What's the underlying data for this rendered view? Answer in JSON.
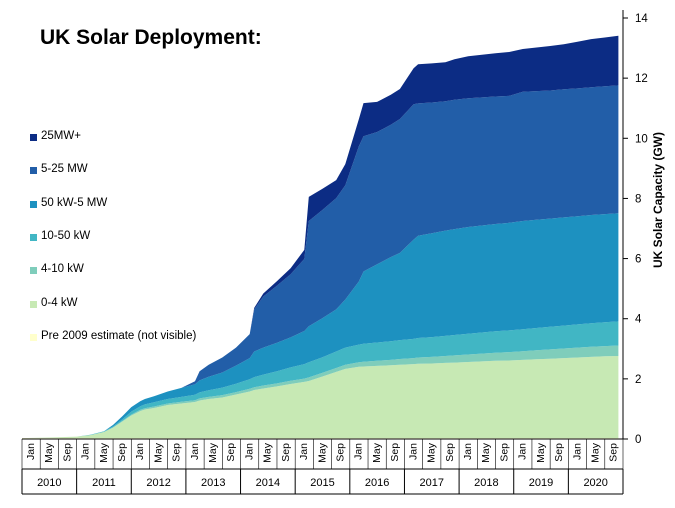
{
  "chart_data": {
    "type": "area",
    "stacked": true,
    "title": "UK Solar Deployment:",
    "ylabel": "UK Solar Capacity (GW)",
    "xlabel": "",
    "ylim": [
      0,
      14
    ],
    "y_ticks": [
      "0",
      "2",
      "4",
      "6",
      "8",
      "10",
      "12",
      "14"
    ],
    "x_month_labels": [
      "Jan",
      "May",
      "Sep"
    ],
    "x_years": [
      "2010",
      "2011",
      "2012",
      "2013",
      "2014",
      "2015",
      "2016",
      "2017",
      "2018",
      "2019",
      "2020"
    ],
    "x_start": "2010-01",
    "x_end": "2020-12",
    "y_axis_position": "right",
    "legend_position": "left",
    "grid": false,
    "dates": [
      "2010-01",
      "2010-07",
      "2011-01",
      "2011-04",
      "2011-07",
      "2011-09",
      "2011-11",
      "2012-01",
      "2012-03",
      "2012-04",
      "2012-06",
      "2012-09",
      "2012-12",
      "2013-03",
      "2013-04",
      "2013-06",
      "2013-09",
      "2013-12",
      "2014-03",
      "2014-04",
      "2014-06",
      "2014-09",
      "2014-12",
      "2015-03",
      "2015-04",
      "2015-07",
      "2015-10",
      "2015-12",
      "2016-03",
      "2016-04",
      "2016-07",
      "2016-10",
      "2016-12",
      "2017-03",
      "2017-04",
      "2017-07",
      "2017-10",
      "2017-12",
      "2018-03",
      "2018-06",
      "2018-09",
      "2018-12",
      "2019-03",
      "2019-06",
      "2019-09",
      "2019-12",
      "2020-03",
      "2020-06",
      "2020-09",
      "2020-12"
    ],
    "series": [
      {
        "name": "Pre 2009 estimate (not visible)",
        "color": "#ffffcc",
        "values": [
          0.03,
          0.03,
          0.03,
          0.03,
          0.03,
          0.03,
          0.03,
          0.03,
          0.03,
          0.03,
          0.03,
          0.03,
          0.03,
          0.03,
          0.03,
          0.03,
          0.03,
          0.03,
          0.03,
          0.03,
          0.03,
          0.03,
          0.03,
          0.03,
          0.03,
          0.03,
          0.03,
          0.03,
          0.03,
          0.03,
          0.03,
          0.03,
          0.03,
          0.03,
          0.03,
          0.03,
          0.03,
          0.03,
          0.03,
          0.03,
          0.03,
          0.03,
          0.03,
          0.03,
          0.03,
          0.03,
          0.03,
          0.03,
          0.03,
          0.03
        ]
      },
      {
        "name": "0-4 kW",
        "color": "#c7e9b4",
        "values": [
          0.0,
          0.02,
          0.05,
          0.1,
          0.2,
          0.35,
          0.55,
          0.75,
          0.9,
          0.95,
          1.0,
          1.1,
          1.15,
          1.2,
          1.25,
          1.3,
          1.35,
          1.45,
          1.55,
          1.6,
          1.65,
          1.72,
          1.8,
          1.87,
          1.9,
          2.05,
          2.2,
          2.3,
          2.37,
          2.38,
          2.4,
          2.42,
          2.44,
          2.46,
          2.47,
          2.48,
          2.5,
          2.51,
          2.53,
          2.55,
          2.57,
          2.58,
          2.6,
          2.62,
          2.64,
          2.66,
          2.68,
          2.7,
          2.72,
          2.73
        ]
      },
      {
        "name": "4-10 kW",
        "color": "#7fcdbb",
        "values": [
          0.0,
          0.0,
          0.0,
          0.0,
          0.01,
          0.01,
          0.02,
          0.03,
          0.04,
          0.04,
          0.05,
          0.05,
          0.06,
          0.06,
          0.07,
          0.07,
          0.08,
          0.08,
          0.09,
          0.09,
          0.1,
          0.1,
          0.11,
          0.11,
          0.12,
          0.12,
          0.13,
          0.14,
          0.15,
          0.16,
          0.17,
          0.18,
          0.19,
          0.2,
          0.21,
          0.22,
          0.23,
          0.24,
          0.25,
          0.26,
          0.27,
          0.28,
          0.29,
          0.3,
          0.31,
          0.32,
          0.33,
          0.34,
          0.34,
          0.35
        ]
      },
      {
        "name": "10-50 kW",
        "color": "#41b6c4",
        "values": [
          0.0,
          0.0,
          0.0,
          0.01,
          0.02,
          0.03,
          0.05,
          0.1,
          0.12,
          0.13,
          0.14,
          0.15,
          0.16,
          0.18,
          0.2,
          0.22,
          0.25,
          0.28,
          0.32,
          0.34,
          0.36,
          0.4,
          0.44,
          0.48,
          0.5,
          0.52,
          0.55,
          0.57,
          0.59,
          0.6,
          0.61,
          0.62,
          0.63,
          0.64,
          0.65,
          0.66,
          0.67,
          0.68,
          0.69,
          0.7,
          0.71,
          0.72,
          0.73,
          0.74,
          0.75,
          0.76,
          0.77,
          0.78,
          0.79,
          0.8
        ]
      },
      {
        "name": "50 kW-5 MW",
        "color": "#1d91c0",
        "values": [
          0.0,
          0.0,
          0.0,
          0.0,
          0.0,
          0.05,
          0.1,
          0.15,
          0.17,
          0.18,
          0.2,
          0.25,
          0.3,
          0.35,
          0.4,
          0.45,
          0.5,
          0.6,
          0.7,
          0.85,
          0.9,
          0.95,
          1.0,
          1.1,
          1.2,
          1.3,
          1.4,
          1.6,
          2.1,
          2.4,
          2.6,
          2.8,
          2.9,
          3.3,
          3.4,
          3.45,
          3.5,
          3.52,
          3.55,
          3.56,
          3.57,
          3.58,
          3.6,
          3.6,
          3.6,
          3.6,
          3.6,
          3.6,
          3.6,
          3.6
        ]
      },
      {
        "name": "5-25 MW",
        "color": "#225ea8",
        "values": [
          0.0,
          0.0,
          0.0,
          0.0,
          0.0,
          0.0,
          0.0,
          0.0,
          0.0,
          0.0,
          0.0,
          0.0,
          0.0,
          0.1,
          0.3,
          0.4,
          0.5,
          0.6,
          0.8,
          1.4,
          1.7,
          1.9,
          2.1,
          2.4,
          3.5,
          3.6,
          3.7,
          3.8,
          4.5,
          4.5,
          4.4,
          4.4,
          4.45,
          4.5,
          4.4,
          4.35,
          4.3,
          4.3,
          4.28,
          4.26,
          4.24,
          4.22,
          4.3,
          4.28,
          4.26,
          4.26,
          4.25,
          4.25,
          4.25,
          4.25
        ]
      },
      {
        "name": "25MW+",
        "color": "#0c2c84",
        "values": [
          0.0,
          0.0,
          0.0,
          0.0,
          0.0,
          0.0,
          0.0,
          0.0,
          0.0,
          0.0,
          0.0,
          0.0,
          0.0,
          0.0,
          0.0,
          0.0,
          0.0,
          0.0,
          0.0,
          0.05,
          0.1,
          0.15,
          0.2,
          0.3,
          0.8,
          0.7,
          0.6,
          0.7,
          0.9,
          1.1,
          1.0,
          1.0,
          1.0,
          1.2,
          1.3,
          1.3,
          1.3,
          1.35,
          1.4,
          1.42,
          1.44,
          1.46,
          1.42,
          1.45,
          1.48,
          1.5,
          1.55,
          1.6,
          1.62,
          1.65
        ]
      }
    ]
  }
}
